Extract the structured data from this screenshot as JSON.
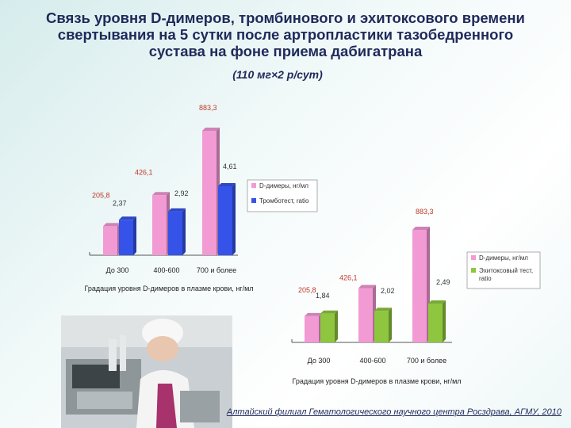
{
  "slide": {
    "title_lines": [
      "Связь уровня D-димеров, тромбинового и эхитоксового времени",
      "свертывания на 5 сутки после артропластики тазобедренного",
      "сустава на фоне приема дабигатрана"
    ],
    "subtitle": "(110 мг×2 р/сут)",
    "footer": "Алтайский филиал Гематологического научного центра Росздрава, АГМУ, 2010"
  },
  "colors": {
    "pink": "#f29ad4",
    "blue": "#3553e8",
    "green": "#8ec63f",
    "label_red": "#c0392b",
    "title": "#1f2a5a"
  },
  "chart_data": [
    {
      "type": "bar",
      "categories": [
        "До 300",
        "400-600",
        "700 и более"
      ],
      "series": [
        {
          "name": "D-димеры, нг/мл",
          "values": [
            205.8,
            426.1,
            883.3
          ],
          "labels": [
            "205,8",
            "426,1",
            "883,3"
          ],
          "color": "#f29ad4"
        },
        {
          "name": "Тромботест, ratio",
          "values": [
            2.37,
            2.92,
            4.61
          ],
          "labels": [
            "2,37",
            "2,92",
            "4,61"
          ],
          "color": "#3553e8"
        }
      ],
      "title": "",
      "xlabel": "Градация уровня D-димеров в плазме крови, нг/мл",
      "ylabel": "",
      "legend_position": "right"
    },
    {
      "type": "bar",
      "categories": [
        "До 300",
        "400-600",
        "700 и более"
      ],
      "series": [
        {
          "name": "D-димеры, нг/мл",
          "values": [
            205.8,
            426.1,
            883.3
          ],
          "labels": [
            "205,8",
            "426,1",
            "883,3"
          ],
          "color": "#f29ad4"
        },
        {
          "name": "Эхитоксовый тест, ratio",
          "values": [
            1.84,
            2.02,
            2.49
          ],
          "labels": [
            "1,84",
            "2,02",
            "2,49"
          ],
          "color": "#8ec63f"
        }
      ],
      "title": "",
      "xlabel": "Градация уровня D-димеров в плазме крови, нг/мл",
      "ylabel": "",
      "legend_position": "right"
    }
  ]
}
